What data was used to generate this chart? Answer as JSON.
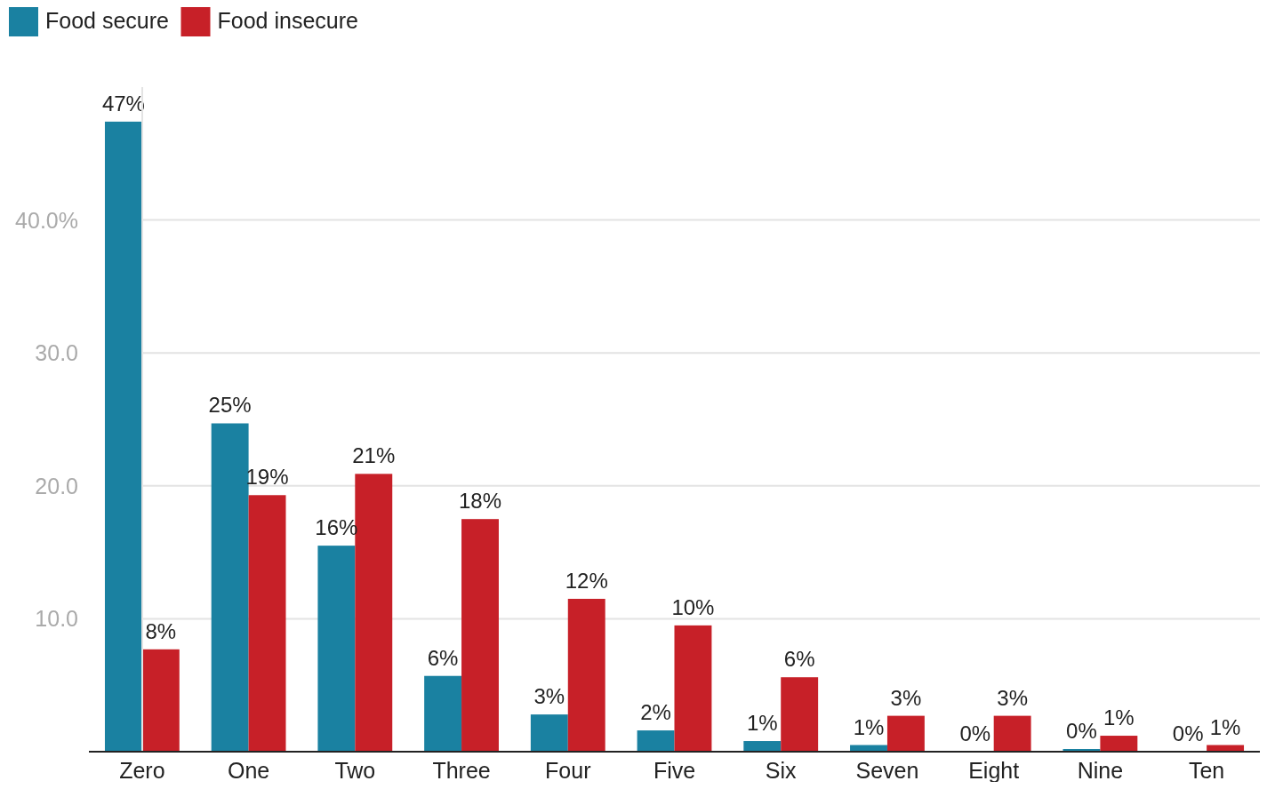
{
  "chart_data": {
    "type": "bar",
    "categories": [
      "Zero",
      "One",
      "Two",
      "Three",
      "Four",
      "Five",
      "Six",
      "Seven",
      "Eight",
      "Nine",
      "Ten"
    ],
    "series": [
      {
        "name": "Food secure",
        "color": "#1a81a1",
        "values": [
          47.4,
          24.7,
          15.5,
          5.7,
          2.8,
          1.6,
          0.8,
          0.5,
          0,
          0.2,
          0
        ],
        "value_labels": [
          "47%",
          "25%",
          "16%",
          "6%",
          "3%",
          "2%",
          "1%",
          "1%",
          "0%",
          "0%",
          "0%"
        ]
      },
      {
        "name": "Food insecure",
        "color": "#c72028",
        "values": [
          7.7,
          19.3,
          20.9,
          17.5,
          11.5,
          9.5,
          5.6,
          2.7,
          2.7,
          1.2,
          0.5
        ],
        "value_labels": [
          "8%",
          "19%",
          "21%",
          "18%",
          "12%",
          "10%",
          "6%",
          "3%",
          "3%",
          "1%",
          "1%"
        ]
      }
    ],
    "ylim": [
      0,
      50
    ],
    "yticks": [
      {
        "value": 10,
        "label": "10.0"
      },
      {
        "value": 20,
        "label": "20.0"
      },
      {
        "value": 30,
        "label": "30.0"
      },
      {
        "value": 40,
        "label": "40.0%"
      }
    ],
    "grid": "y",
    "legend": "top left"
  }
}
